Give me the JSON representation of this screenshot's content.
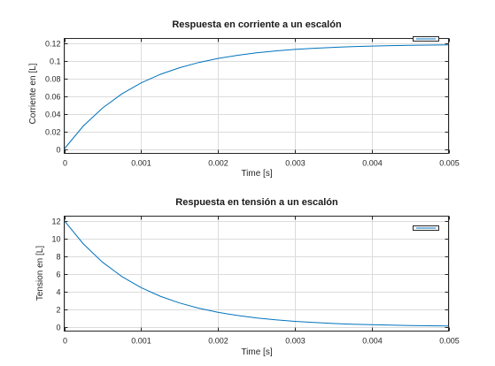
{
  "chart_data": [
    {
      "type": "line",
      "title": "Respuesta en corriente a un escalón",
      "xlabel": "Time [s]",
      "ylabel": "Corriente en [L]",
      "xlim": [
        0,
        0.005
      ],
      "ylim": [
        -0.005,
        0.125
      ],
      "xticks": [
        0,
        0.001,
        0.002,
        0.003,
        0.004,
        0.005
      ],
      "xtick_labels": [
        "0",
        "0.001",
        "0.002",
        "0.003",
        "0.004",
        "0.005"
      ],
      "yticks": [
        0,
        0.02,
        0.04,
        0.06,
        0.08,
        0.1,
        0.12
      ],
      "ytick_labels": [
        "0",
        "0.02",
        "0.04",
        "0.06",
        "0.08",
        "0.1",
        "0.12"
      ],
      "grid": true,
      "legend": "top-right",
      "series": [
        {
          "color": "#0072bd",
          "x": [
            0,
            0.00025,
            0.0005,
            0.00075,
            0.001,
            0.00125,
            0.0015,
            0.00175,
            0.002,
            0.00225,
            0.0025,
            0.00275,
            0.003,
            0.00325,
            0.0035,
            0.00375,
            0.004,
            0.00425,
            0.0045,
            0.00475,
            0.005
          ],
          "values": [
            0,
            0.0261,
            0.0464,
            0.0623,
            0.0747,
            0.0844,
            0.0919,
            0.0978,
            0.1024,
            0.1059,
            0.1087,
            0.1109,
            0.1126,
            0.1139,
            0.1149,
            0.1157,
            0.1164,
            0.1169,
            0.1172,
            0.1175,
            0.1178
          ]
        }
      ]
    },
    {
      "type": "line",
      "title": "Respuesta en tensión a un escalón",
      "xlabel": "Time [s]",
      "ylabel": "Tension en [L]",
      "xlim": [
        0,
        0.005
      ],
      "ylim": [
        -0.5,
        12.5
      ],
      "xticks": [
        0,
        0.001,
        0.002,
        0.003,
        0.004,
        0.005
      ],
      "xtick_labels": [
        "0",
        "0.001",
        "0.002",
        "0.003",
        "0.004",
        "0.005"
      ],
      "yticks": [
        0,
        2,
        4,
        6,
        8,
        10,
        12
      ],
      "ytick_labels": [
        "0",
        "2",
        "4",
        "6",
        "8",
        "10",
        "12"
      ],
      "grid": true,
      "legend": "top-right",
      "series": [
        {
          "color": "#0072bd",
          "x": [
            0,
            0.00025,
            0.0005,
            0.00075,
            0.001,
            0.00125,
            0.0015,
            0.00175,
            0.002,
            0.00225,
            0.0025,
            0.00275,
            0.003,
            0.00325,
            0.0035,
            0.00375,
            0.004,
            0.00425,
            0.0045,
            0.00475,
            0.005
          ],
          "values": [
            12,
            9.35,
            7.28,
            5.67,
            4.42,
            3.44,
            2.68,
            2.09,
            1.62,
            1.27,
            0.99,
            0.77,
            0.6,
            0.47,
            0.36,
            0.28,
            0.22,
            0.17,
            0.13,
            0.1,
            0.08
          ]
        }
      ]
    }
  ]
}
